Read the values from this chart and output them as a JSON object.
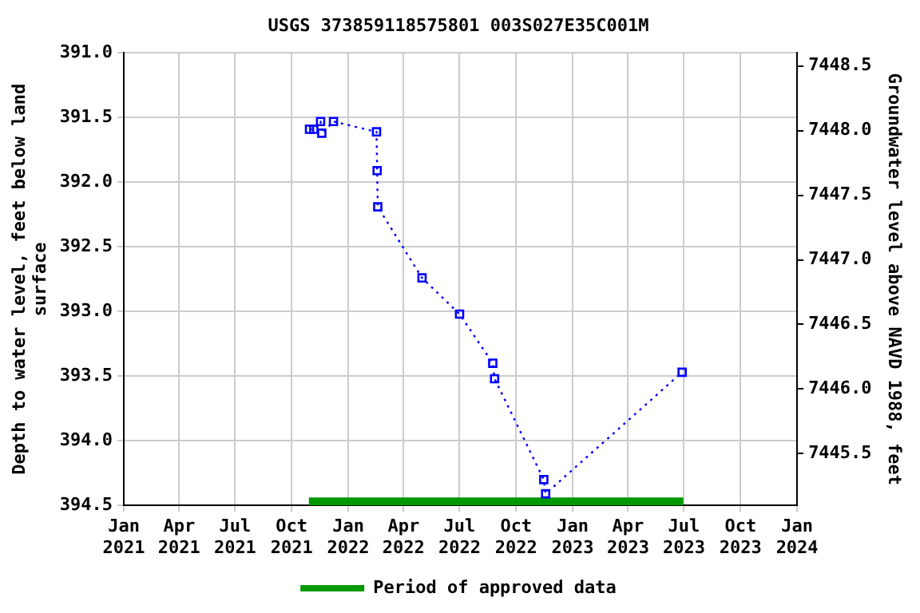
{
  "chart_data": {
    "type": "line",
    "title": "USGS 373859118575801 003S027E35C001M",
    "ylabel": "Depth to water level, feet below land surface",
    "y2label": "Groundwater level above NAVD 1988, feet",
    "x": [
      "2021-10-30",
      "2021-11-06",
      "2021-11-17",
      "2021-11-19",
      "2021-12-08",
      "2022-02-16",
      "2022-02-17",
      "2022-02-18",
      "2022-05-01",
      "2022-07-01",
      "2022-08-24",
      "2022-08-27",
      "2022-11-15",
      "2022-11-18",
      "2023-06-28"
    ],
    "series": [
      {
        "color": "#0000ff",
        "values": [
          391.59,
          391.59,
          391.53,
          391.62,
          391.53,
          391.61,
          391.91,
          392.19,
          392.74,
          393.02,
          393.4,
          393.52,
          394.3,
          394.41,
          393.47
        ]
      },
      {
        "name": "Period of approved data",
        "color": "#009900",
        "x": [
          "2021-10-29",
          "2023-06-30"
        ],
        "values": [
          394.47,
          394.47
        ],
        "marker": "none",
        "line_style": "solid"
      }
    ],
    "xlim": [
      "2021-01-01",
      "2024-01-01"
    ],
    "xticks": [
      {
        "value": "2021-01-01",
        "label": "Jan 2021"
      },
      {
        "value": "2021-04-01",
        "label": "Apr 2021"
      },
      {
        "value": "2021-07-01",
        "label": "Jul 2021"
      },
      {
        "value": "2021-10-01",
        "label": "Oct 2021"
      },
      {
        "value": "2022-01-01",
        "label": "Jan 2022"
      },
      {
        "value": "2022-04-01",
        "label": "Apr 2022"
      },
      {
        "value": "2022-07-01",
        "label": "Jul 2022"
      },
      {
        "value": "2022-10-01",
        "label": "Oct 2022"
      },
      {
        "value": "2023-01-01",
        "label": "Jan 2023"
      },
      {
        "value": "2023-04-01",
        "label": "Apr 2023"
      },
      {
        "value": "2023-07-01",
        "label": "Jul 2023"
      },
      {
        "value": "2023-10-01",
        "label": "Oct 2023"
      },
      {
        "value": "2024-01-01",
        "label": "Jan 2024"
      }
    ],
    "ylim": [
      394.5,
      391.0
    ],
    "yticks": [
      {
        "value": 391,
        "label": "391.0"
      },
      {
        "value": 391.5,
        "label": "391.5"
      },
      {
        "value": 392,
        "label": "392.0"
      },
      {
        "value": 392.5,
        "label": "392.5"
      },
      {
        "value": 393,
        "label": "393.0"
      },
      {
        "value": 393.5,
        "label": "393.5"
      },
      {
        "value": 394,
        "label": "394.0"
      },
      {
        "value": 394.5,
        "label": "394.5"
      }
    ],
    "y2lim": [
      7445.1,
      7448.6
    ],
    "y2ticks": [
      7445.5,
      {
        "value": 7446,
        "label": "7446.0"
      },
      7446.5,
      {
        "value": 7447,
        "label": "7447.0"
      },
      7447.5,
      {
        "value": 7448,
        "label": "7448.0"
      },
      7448.5
    ],
    "grid": true,
    "legend": "bottom",
    "marker": "square",
    "line_style": "dotted"
  }
}
